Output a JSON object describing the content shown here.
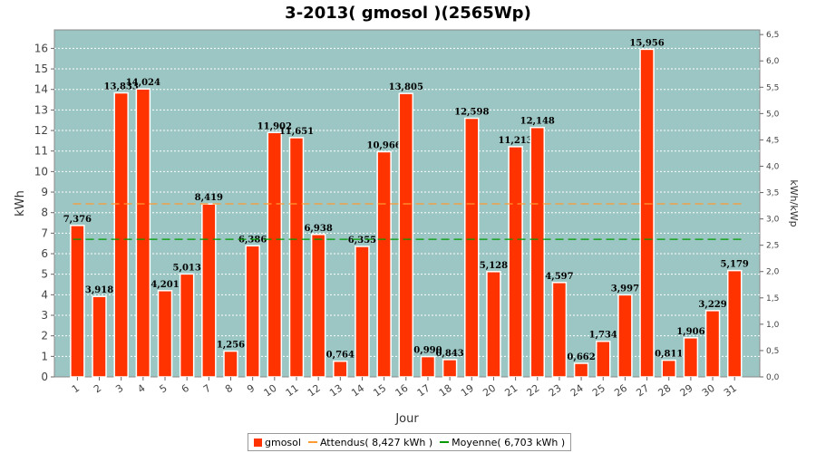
{
  "colors": {
    "bar": "#ff3300",
    "attendus": "#ff9933",
    "moyenne": "#009900",
    "plot_bg": "#9bc6c3",
    "grid": "#ffffff"
  },
  "chart_data": {
    "type": "bar",
    "title": "3-2013( gmosol )(2565Wp)",
    "xlabel": "Jour",
    "ylabel": "kWh",
    "y2label": "kWh/kWp",
    "ylim": [
      0,
      16.9
    ],
    "yticks": [
      0,
      1,
      2,
      3,
      4,
      5,
      6,
      7,
      8,
      9,
      10,
      11,
      12,
      13,
      14,
      15,
      16
    ],
    "y2ticks": [
      "0,0",
      "0,5",
      "1,0",
      "1,5",
      "2,0",
      "2,5",
      "3,0",
      "3,5",
      "4,0",
      "4,5",
      "5,0",
      "5,5",
      "6,0",
      "6,5"
    ],
    "y2values": [
      0,
      0.5,
      1,
      1.5,
      2,
      2.5,
      3,
      3.5,
      4,
      4.5,
      5,
      5.5,
      6,
      6.5
    ],
    "y2_kwp": 2.565,
    "grid": true,
    "legend_position": "bottom",
    "categories": [
      "1",
      "2",
      "3",
      "4",
      "5",
      "6",
      "7",
      "8",
      "9",
      "10",
      "11",
      "12",
      "13",
      "14",
      "15",
      "16",
      "17",
      "18",
      "19",
      "20",
      "21",
      "22",
      "23",
      "24",
      "25",
      "26",
      "27",
      "28",
      "29",
      "30",
      "31"
    ],
    "series": [
      {
        "name": "gmosol",
        "values": [
          7.376,
          3.918,
          13.833,
          14.024,
          4.201,
          5.013,
          8.419,
          1.256,
          6.386,
          11.902,
          11.651,
          6.938,
          0.764,
          6.355,
          10.966,
          13.805,
          0.99,
          0.843,
          12.598,
          5.128,
          11.213,
          12.148,
          4.597,
          0.662,
          1.734,
          3.997,
          15.956,
          0.811,
          1.906,
          3.229,
          5.179
        ],
        "labels": [
          "7,376",
          "3,918",
          "13,833",
          "14,024",
          "4,201",
          "5,013",
          "8,419",
          "1,256",
          "6,386",
          "11,902",
          "11,651",
          "6,938",
          "0,764",
          "6,355",
          "10,966",
          "13,805",
          "0,990",
          "0,843",
          "12,598",
          "5,128",
          "11,213",
          "12,148",
          "4,597",
          "0,662",
          "1,734",
          "3,997",
          "15,956",
          "0,811",
          "1,906",
          "3,229",
          "5,179"
        ]
      }
    ],
    "reference_lines": [
      {
        "name": "Attendus( 8,427 kWh )",
        "value": 8.427
      },
      {
        "name": "Moyenne( 6,703 kWh )",
        "value": 6.703
      }
    ]
  },
  "legend": {
    "gmosol": "gmosol",
    "attendus": "Attendus( 8,427 kWh )",
    "moyenne": "Moyenne( 6,703 kWh )"
  }
}
